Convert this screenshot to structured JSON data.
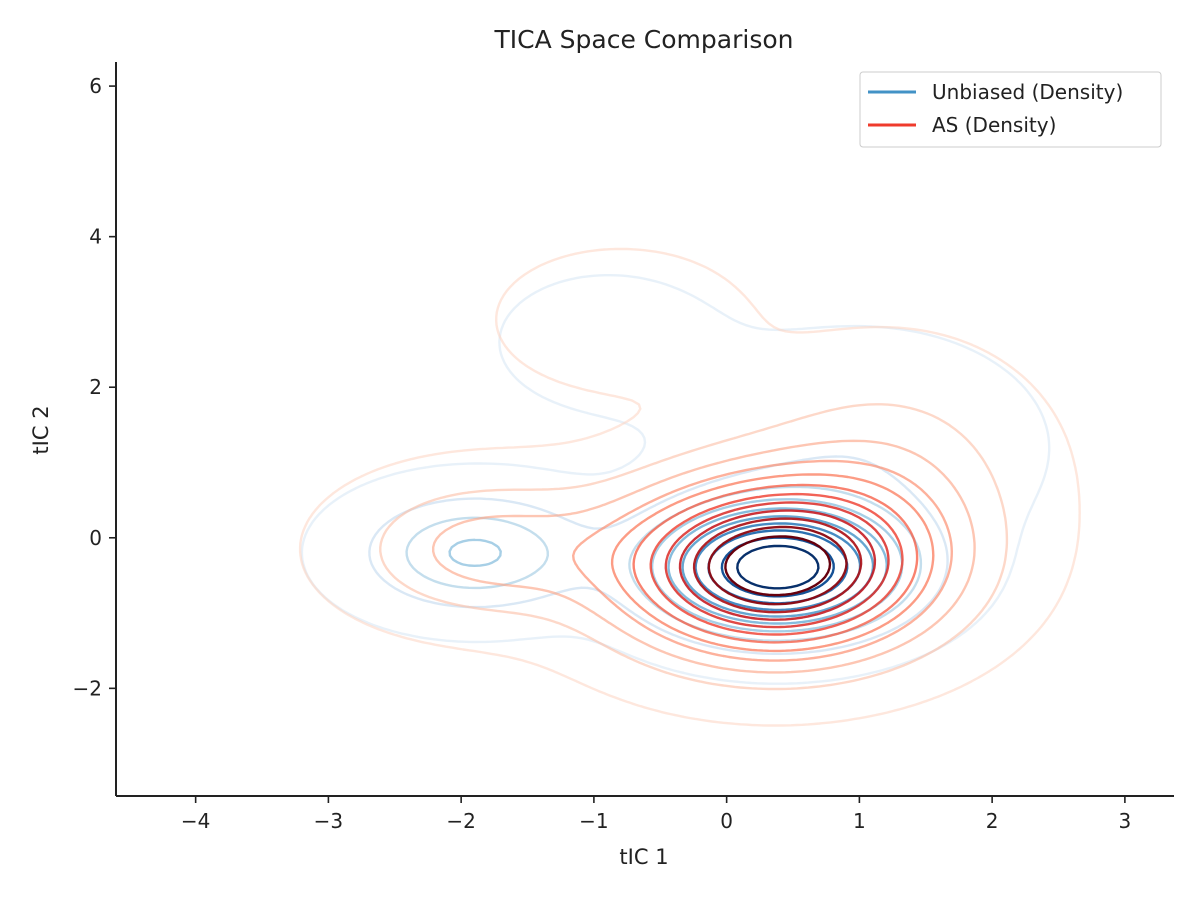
{
  "chart_data": {
    "type": "contour",
    "title": "TICA Space Comparison",
    "xlabel": "tIC 1",
    "ylabel": "tIC 2",
    "xlim": [
      -4.6,
      3.37
    ],
    "ylim": [
      -3.43,
      6.32
    ],
    "xticks": [
      -4,
      -3,
      -2,
      -1,
      0,
      1,
      2,
      3
    ],
    "yticks": [
      -2,
      0,
      2,
      4,
      6
    ],
    "xtick_labels": [
      "−4",
      "−3",
      "−2",
      "−1",
      "0",
      "1",
      "2",
      "3"
    ],
    "ytick_labels": [
      "−2",
      "0",
      "2",
      "4",
      "6"
    ],
    "grid": false,
    "legend_position": "top-right",
    "series": [
      {
        "name": "Unbiased (Density)",
        "color": "#4292c6",
        "colormap": "Blues",
        "modes": [
          {
            "center": [
              0.38,
              -0.4
            ],
            "sigma": [
              0.6,
              0.55
            ],
            "weight": 1.0
          },
          {
            "center": [
              -1.9,
              -0.2
            ],
            "sigma": [
              0.55,
              0.5
            ],
            "weight": 0.33
          },
          {
            "center": [
              -0.9,
              2.6
            ],
            "sigma": [
              0.55,
              0.6
            ],
            "weight": 0.06
          },
          {
            "center": [
              1.0,
              1.2
            ],
            "sigma": [
              0.8,
              0.9
            ],
            "weight": 0.1
          }
        ],
        "levels": 10
      },
      {
        "name": "AS (Density)",
        "color": "#ef3b2c",
        "colormap": "Reds",
        "modes": [
          {
            "center": [
              0.35,
              -0.4
            ],
            "sigma": [
              0.75,
              0.75
            ],
            "weight": 1.0
          },
          {
            "center": [
              -1.8,
              -0.15
            ],
            "sigma": [
              0.65,
              0.6
            ],
            "weight": 0.22
          },
          {
            "center": [
              -0.8,
              2.9
            ],
            "sigma": [
              0.6,
              0.6
            ],
            "weight": 0.07
          },
          {
            "center": [
              1.2,
              0.8
            ],
            "sigma": [
              0.7,
              1.0
            ],
            "weight": 0.15
          }
        ],
        "levels": 12
      }
    ]
  }
}
